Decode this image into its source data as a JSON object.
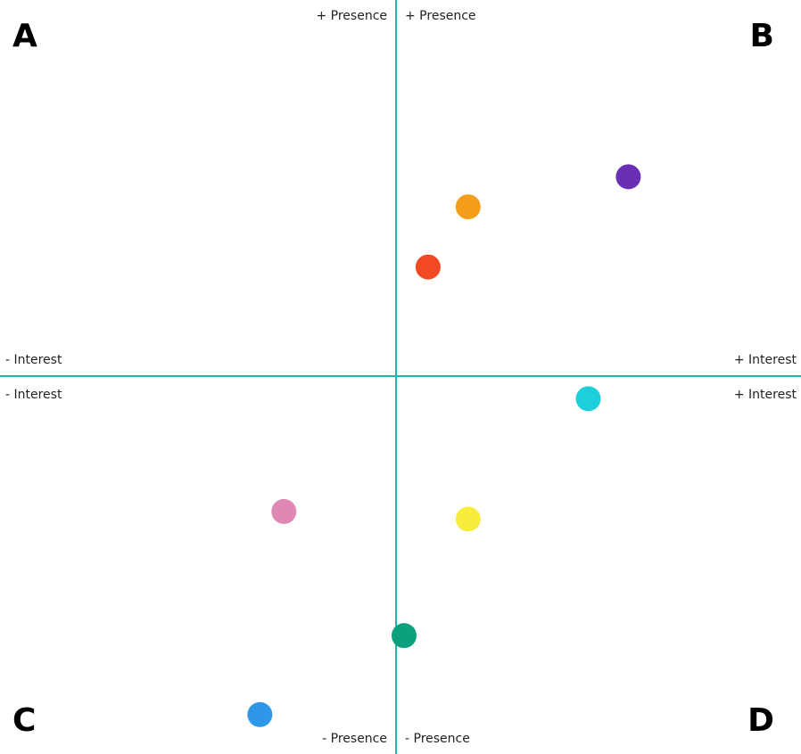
{
  "chart_data": {
    "type": "scatter",
    "title": "",
    "x_axis": {
      "negative_label": "- Interest",
      "positive_label": "+ Interest",
      "range": [
        -1,
        1
      ]
    },
    "y_axis": {
      "negative_label": "- Presence",
      "positive_label": "+ Presence",
      "range": [
        -1,
        1
      ]
    },
    "quadrants": {
      "top_left": "A",
      "top_right": "B",
      "bottom_left": "C",
      "bottom_right": "D"
    },
    "axis_color": "#1fb3b3",
    "grid": false,
    "points": [
      {
        "x": 0.58,
        "y": 0.53,
        "color": "#6a2fb5"
      },
      {
        "x": 0.18,
        "y": 0.45,
        "color": "#f59e1b"
      },
      {
        "x": 0.08,
        "y": 0.29,
        "color": "#f14a22"
      },
      {
        "x": 0.48,
        "y": -0.06,
        "color": "#1dcfda"
      },
      {
        "x": -0.28,
        "y": -0.36,
        "color": "#e088b4"
      },
      {
        "x": 0.18,
        "y": -0.38,
        "color": "#f8ed3f"
      },
      {
        "x": 0.02,
        "y": -0.69,
        "color": "#0ca17c"
      },
      {
        "x": -0.34,
        "y": -0.9,
        "color": "#2f97e8"
      }
    ]
  }
}
